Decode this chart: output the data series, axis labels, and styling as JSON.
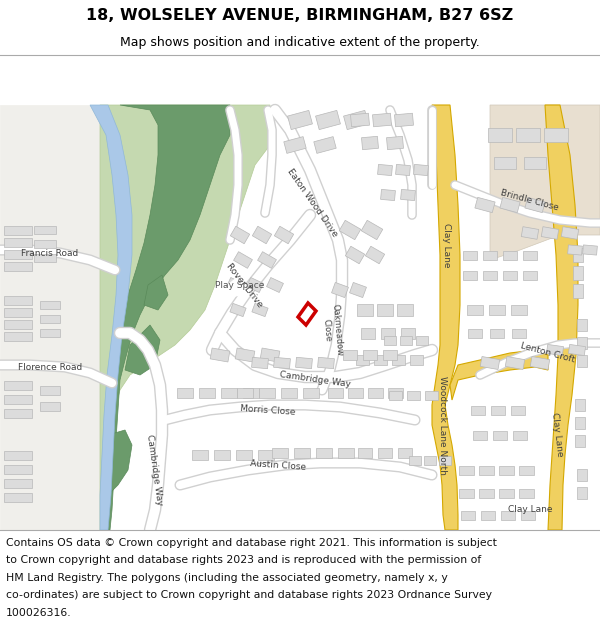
{
  "title": "18, WOLSELEY AVENUE, BIRMINGHAM, B27 6SZ",
  "subtitle": "Map shows position and indicative extent of the property.",
  "footer_lines": [
    "Contains OS data © Crown copyright and database right 2021. This information is subject",
    "to Crown copyright and database rights 2023 and is reproduced with the permission of",
    "HM Land Registry. The polygons (including the associated geometry, namely x, y",
    "co-ordinates) are subject to Crown copyright and database rights 2023 Ordnance Survey",
    "100026316."
  ],
  "bg_color": "#f0efeb",
  "road_white": "#ffffff",
  "road_edge": "#d0d0d0",
  "building_color": "#dcdcdc",
  "building_edge": "#b8b8b8",
  "green_dark": "#6b9b6b",
  "green_mid": "#7aaa6a",
  "green_light": "#c5d9b0",
  "water_color": "#aac8e8",
  "yellow_fill": "#f0d060",
  "yellow_edge": "#d4a800",
  "beige_area": "#e8dfd0",
  "property_red": "#cc0000",
  "title_fontsize": 11.5,
  "subtitle_fontsize": 9,
  "footer_fontsize": 7.8,
  "label_fontsize": 6.5
}
